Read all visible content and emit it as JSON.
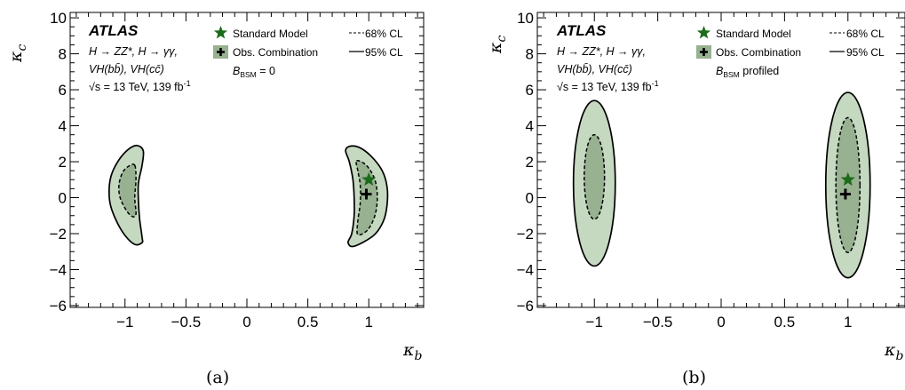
{
  "chart_data": [
    {
      "type": "contour",
      "panel_label": "(a)",
      "xlabel": "κ_b",
      "ylabel": "κ_c",
      "xlim": [
        -1.45,
        1.45
      ],
      "ylim": [
        -6.1,
        10.3
      ],
      "xticks": [
        -1,
        -0.5,
        0,
        0.5,
        1
      ],
      "xtick_labels": [
        "−1",
        "−0.5",
        "0",
        "0.5",
        "1"
      ],
      "yticks": [
        -6,
        -4,
        -2,
        0,
        2,
        4,
        6,
        8,
        10
      ],
      "ytick_labels": [
        "−6",
        "−4",
        "−2",
        "0",
        "2",
        "4",
        "6",
        "8",
        "10"
      ],
      "experiment": "ATLAS",
      "channels_line1": "H → ZZ*, H → γγ,",
      "channels_line2": "VH(bb̄), VH(cc̄)",
      "energy": "√s = 13 TeV, 139 fb",
      "energy_sup": "-1",
      "bsm_condition_main": "B",
      "bsm_condition_sub": "BSM",
      "bsm_condition_rest": " = 0",
      "legend": {
        "sm": "Standard Model",
        "obs": "Obs. Combination",
        "cl68": "68% CL",
        "cl95": "95% CL"
      },
      "sm_point": {
        "kb": 1.0,
        "kc": 1.0
      },
      "best_fit": {
        "kb": 0.98,
        "kc": 0.2
      },
      "contours_95": [
        [
          [
            -0.9,
            2.9
          ],
          [
            -0.85,
            2.6
          ],
          [
            -0.86,
            1.8
          ],
          [
            -0.89,
            0.8
          ],
          [
            -0.89,
            -0.2
          ],
          [
            -0.88,
            -1.2
          ],
          [
            -0.86,
            -2.2
          ],
          [
            -0.86,
            -2.5
          ],
          [
            -0.92,
            -2.6
          ],
          [
            -1.0,
            -2.1
          ],
          [
            -1.07,
            -1.3
          ],
          [
            -1.12,
            -0.4
          ],
          [
            -1.13,
            0.5
          ],
          [
            -1.11,
            1.3
          ],
          [
            -1.05,
            2.1
          ],
          [
            -0.97,
            2.7
          ]
        ],
        [
          [
            0.84,
            2.85
          ],
          [
            0.92,
            2.8
          ],
          [
            1.02,
            2.3
          ],
          [
            1.11,
            1.5
          ],
          [
            1.15,
            0.6
          ],
          [
            1.15,
            -0.4
          ],
          [
            1.12,
            -1.3
          ],
          [
            1.04,
            -2.1
          ],
          [
            0.88,
            -2.7
          ],
          [
            0.83,
            -2.5
          ],
          [
            0.86,
            -2.0
          ],
          [
            0.88,
            -1.0
          ],
          [
            0.88,
            0.0
          ],
          [
            0.87,
            1.0
          ],
          [
            0.84,
            2.0
          ],
          [
            0.81,
            2.6
          ]
        ]
      ],
      "contours_68": [
        [
          [
            -0.92,
            1.8
          ],
          [
            -0.91,
            1.0
          ],
          [
            -0.92,
            0.0
          ],
          [
            -0.91,
            -0.9
          ],
          [
            -0.94,
            -1.05
          ],
          [
            -0.99,
            -0.7
          ],
          [
            -1.04,
            0.0
          ],
          [
            -1.05,
            0.7
          ],
          [
            -1.02,
            1.4
          ],
          [
            -0.97,
            1.75
          ]
        ],
        [
          [
            0.9,
            2.05
          ],
          [
            0.98,
            1.8
          ],
          [
            1.05,
            1.0
          ],
          [
            1.07,
            0.0
          ],
          [
            1.05,
            -1.0
          ],
          [
            0.99,
            -1.8
          ],
          [
            0.91,
            -2.05
          ],
          [
            0.91,
            -1.3
          ],
          [
            0.93,
            -0.3
          ],
          [
            0.93,
            0.7
          ],
          [
            0.91,
            1.5
          ]
        ]
      ]
    },
    {
      "type": "contour",
      "panel_label": "(b)",
      "xlabel": "κ_b",
      "ylabel": "κ_c",
      "xlim": [
        -1.45,
        1.45
      ],
      "ylim": [
        -6.1,
        10.3
      ],
      "xticks": [
        -1,
        -0.5,
        0,
        0.5,
        1
      ],
      "xtick_labels": [
        "−1",
        "−0.5",
        "0",
        "0.5",
        "1"
      ],
      "yticks": [
        -6,
        -4,
        -2,
        0,
        2,
        4,
        6,
        8,
        10
      ],
      "ytick_labels": [
        "−6",
        "−4",
        "−2",
        "0",
        "2",
        "4",
        "6",
        "8",
        "10"
      ],
      "experiment": "ATLAS",
      "channels_line1": "H → ZZ*, H → γγ,",
      "channels_line2": "VH(bb̄), VH(cc̄)",
      "energy": "√s = 13 TeV, 139 fb",
      "energy_sup": "-1",
      "bsm_condition_main": "B",
      "bsm_condition_sub": "BSM",
      "bsm_condition_rest": " profiled",
      "legend": {
        "sm": "Standard Model",
        "obs": "Obs. Combination",
        "cl68": "68% CL",
        "cl95": "95% CL"
      },
      "sm_point": {
        "kb": 1.0,
        "kc": 1.0
      },
      "best_fit": {
        "kb": 0.98,
        "kc": 0.2
      },
      "ellipses_95": [
        {
          "cx": -1.0,
          "cy": 0.8,
          "rx": 0.165,
          "ry": 4.6
        },
        {
          "cx": 1.0,
          "cy": 0.7,
          "rx": 0.175,
          "ry": 5.15
        }
      ],
      "ellipses_68": [
        {
          "cx": -1.0,
          "cy": 1.15,
          "rx": 0.08,
          "ry": 2.35
        },
        {
          "cx": 1.0,
          "cy": 0.7,
          "rx": 0.095,
          "ry": 3.75
        }
      ]
    }
  ]
}
